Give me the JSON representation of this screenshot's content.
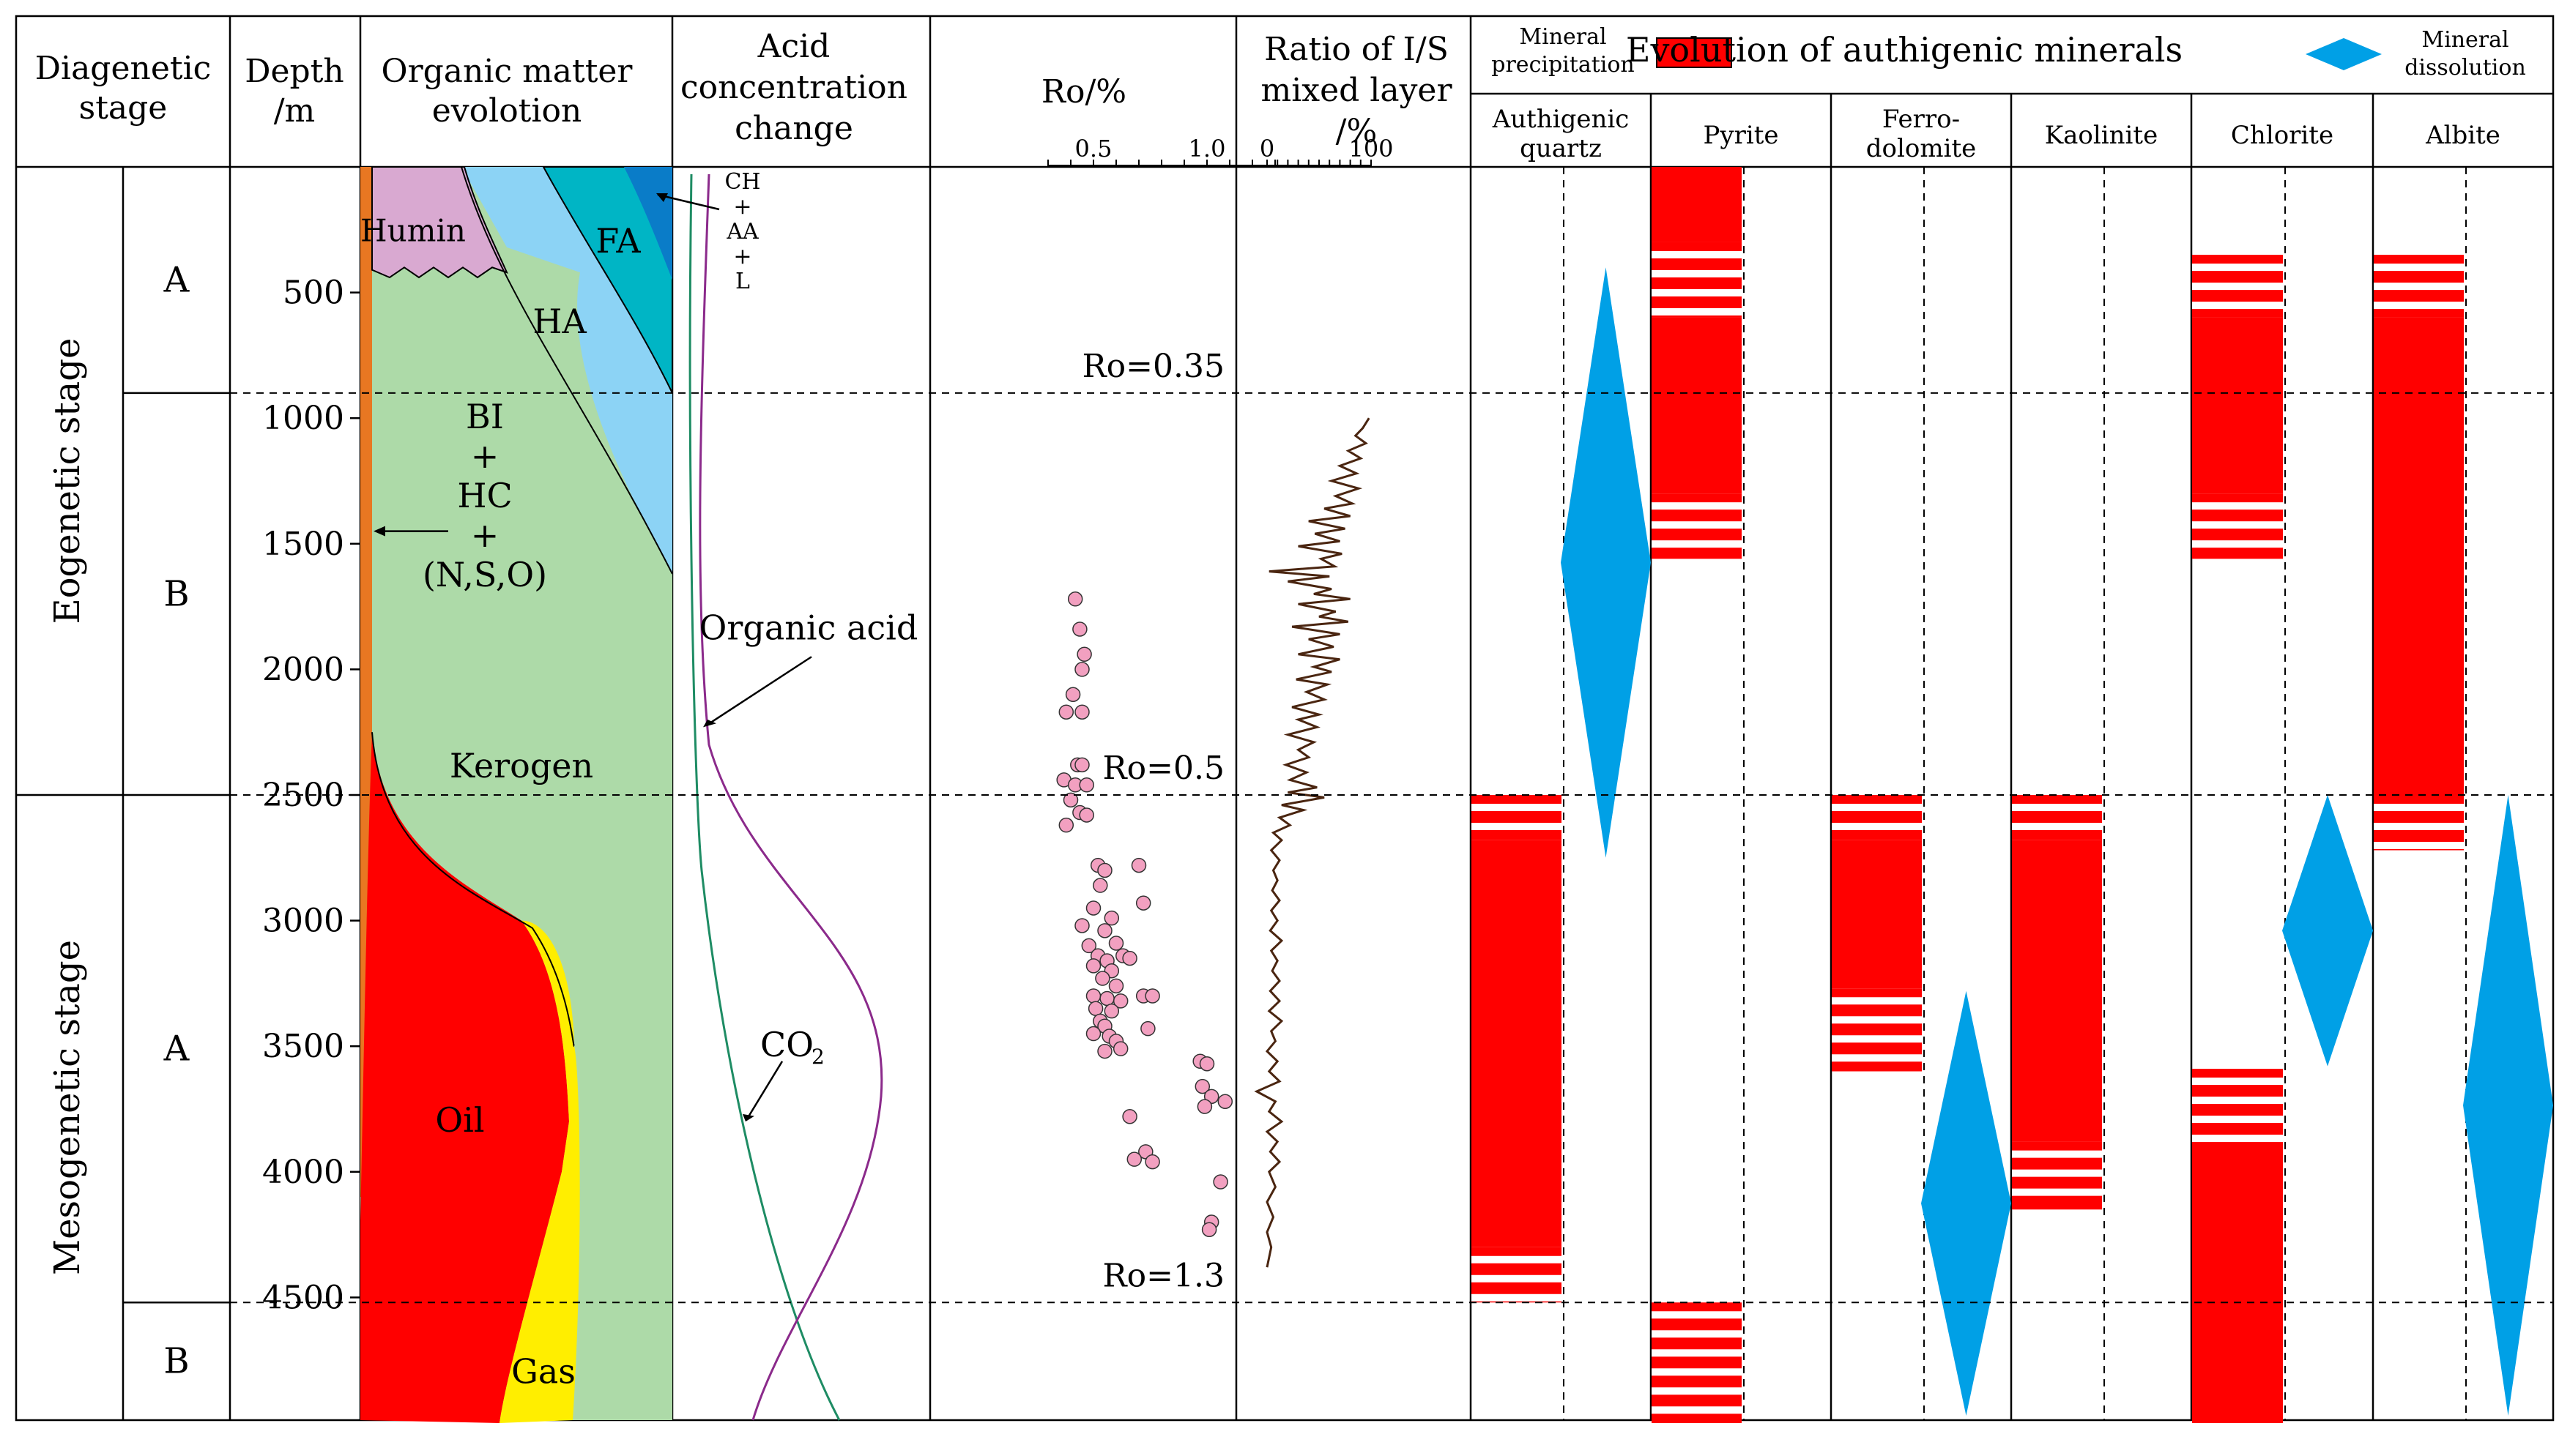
{
  "header": {
    "diagenetic_stage": [
      "Diagenetic",
      "stage"
    ],
    "depth": [
      "Depth",
      "/m"
    ],
    "organic": [
      "Organic  matter",
      "evolotion"
    ],
    "acid": [
      "Acid",
      "concentration",
      "change"
    ],
    "ro": "Ro/%",
    "is": [
      "Ratio of I/S",
      "mixed layer",
      "/%"
    ],
    "mineral_precipitation": [
      "Mineral",
      "precipitation"
    ],
    "evolution_title": "Evolution of authigenic minerals",
    "mineral_dissolution": [
      "Mineral",
      "dissolution"
    ]
  },
  "minerals": [
    {
      "name": [
        "Authigenic",
        "quartz"
      ]
    },
    {
      "name": [
        "Pyrite"
      ]
    },
    {
      "name": [
        "Ferro-",
        "dolomite"
      ]
    },
    {
      "name": [
        "Kaolinite"
      ]
    },
    {
      "name": [
        "Chlorite"
      ]
    },
    {
      "name": [
        "Albite"
      ]
    }
  ],
  "stages": [
    {
      "label": "Eogenetic stage",
      "substages": [
        "A",
        "B"
      ]
    },
    {
      "label": "Mesogenetic stage",
      "substages": [
        "A",
        "B"
      ]
    }
  ],
  "depth_axis": {
    "ticks": [
      500,
      1000,
      1500,
      2000,
      2500,
      3000,
      3500,
      4000,
      4500
    ],
    "min": 0,
    "max": 5000
  },
  "stage_boundaries_m": [
    900,
    2500,
    4520
  ],
  "organic_labels": {
    "humin": "Humin",
    "fa": "FA",
    "ha": "HA",
    "bi": [
      "BI",
      "+",
      "HC",
      "+",
      "(N,S,O)"
    ],
    "kerogen": "Kerogen",
    "oil": "Oil",
    "gas": "Gas"
  },
  "acid_labels": {
    "top": [
      "CH",
      "+",
      "AA",
      "+",
      "L"
    ],
    "organic_acid": "Organic acid",
    "co2": "CO",
    "co2_sub": "2"
  },
  "ro_axis": {
    "ticks": [
      "0.5",
      "1.0"
    ]
  },
  "ro_labels": [
    {
      "text": "Ro=0.35",
      "depth": 900
    },
    {
      "text": "Ro=0.5",
      "depth": 2500
    },
    {
      "text": "Ro=1.3",
      "depth": 4520
    }
  ],
  "ro_points": [
    [
      0.42,
      1720
    ],
    [
      0.44,
      1840
    ],
    [
      0.46,
      1940
    ],
    [
      0.45,
      2000
    ],
    [
      0.41,
      2100
    ],
    [
      0.38,
      2170
    ],
    [
      0.45,
      2170
    ],
    [
      0.43,
      2380
    ],
    [
      0.45,
      2380
    ],
    [
      0.37,
      2440
    ],
    [
      0.42,
      2460
    ],
    [
      0.47,
      2460
    ],
    [
      0.4,
      2520
    ],
    [
      0.44,
      2570
    ],
    [
      0.47,
      2580
    ],
    [
      0.38,
      2620
    ],
    [
      0.52,
      2780
    ],
    [
      0.7,
      2780
    ],
    [
      0.55,
      2800
    ],
    [
      0.53,
      2860
    ],
    [
      0.5,
      2950
    ],
    [
      0.72,
      2930
    ],
    [
      0.58,
      2990
    ],
    [
      0.45,
      3020
    ],
    [
      0.55,
      3040
    ],
    [
      0.48,
      3100
    ],
    [
      0.6,
      3090
    ],
    [
      0.52,
      3140
    ],
    [
      0.56,
      3160
    ],
    [
      0.63,
      3140
    ],
    [
      0.66,
      3150
    ],
    [
      0.5,
      3180
    ],
    [
      0.58,
      3200
    ],
    [
      0.54,
      3230
    ],
    [
      0.6,
      3260
    ],
    [
      0.5,
      3300
    ],
    [
      0.56,
      3310
    ],
    [
      0.62,
      3320
    ],
    [
      0.72,
      3300
    ],
    [
      0.76,
      3300
    ],
    [
      0.51,
      3350
    ],
    [
      0.58,
      3360
    ],
    [
      0.53,
      3400
    ],
    [
      0.55,
      3420
    ],
    [
      0.5,
      3450
    ],
    [
      0.57,
      3460
    ],
    [
      0.74,
      3430
    ],
    [
      0.6,
      3480
    ],
    [
      0.55,
      3520
    ],
    [
      0.62,
      3510
    ],
    [
      0.97,
      3560
    ],
    [
      1.0,
      3570
    ],
    [
      0.98,
      3660
    ],
    [
      1.02,
      3700
    ],
    [
      1.08,
      3720
    ],
    [
      0.99,
      3740
    ],
    [
      0.66,
      3780
    ],
    [
      0.73,
      3920
    ],
    [
      0.76,
      3960
    ],
    [
      0.68,
      3950
    ],
    [
      1.06,
      4040
    ],
    [
      1.02,
      4200
    ],
    [
      1.01,
      4230
    ]
  ],
  "is_axis": {
    "ticks": [
      "0",
      "100"
    ]
  },
  "is_curve": [
    [
      98,
      1000
    ],
    [
      92,
      1040
    ],
    [
      85,
      1070
    ],
    [
      95,
      1100
    ],
    [
      78,
      1130
    ],
    [
      90,
      1160
    ],
    [
      70,
      1190
    ],
    [
      86,
      1220
    ],
    [
      62,
      1250
    ],
    [
      88,
      1280
    ],
    [
      66,
      1310
    ],
    [
      82,
      1340
    ],
    [
      55,
      1360
    ],
    [
      80,
      1390
    ],
    [
      40,
      1410
    ],
    [
      75,
      1440
    ],
    [
      46,
      1460
    ],
    [
      70,
      1490
    ],
    [
      30,
      1510
    ],
    [
      72,
      1540
    ],
    [
      52,
      1560
    ],
    [
      65,
      1590
    ],
    [
      2,
      1610
    ],
    [
      60,
      1630
    ],
    [
      20,
      1650
    ],
    [
      62,
      1680
    ],
    [
      45,
      1700
    ],
    [
      80,
      1720
    ],
    [
      30,
      1740
    ],
    [
      66,
      1770
    ],
    [
      50,
      1790
    ],
    [
      78,
      1810
    ],
    [
      24,
      1830
    ],
    [
      70,
      1860
    ],
    [
      40,
      1880
    ],
    [
      64,
      1910
    ],
    [
      30,
      1940
    ],
    [
      70,
      1960
    ],
    [
      45,
      1990
    ],
    [
      62,
      2010
    ],
    [
      28,
      2040
    ],
    [
      58,
      2060
    ],
    [
      38,
      2090
    ],
    [
      55,
      2120
    ],
    [
      24,
      2150
    ],
    [
      50,
      2180
    ],
    [
      30,
      2200
    ],
    [
      48,
      2230
    ],
    [
      20,
      2260
    ],
    [
      45,
      2290
    ],
    [
      30,
      2320
    ],
    [
      40,
      2350
    ],
    [
      18,
      2380
    ],
    [
      38,
      2410
    ],
    [
      22,
      2440
    ],
    [
      48,
      2470
    ],
    [
      20,
      2490
    ],
    [
      55,
      2510
    ],
    [
      14,
      2540
    ],
    [
      35,
      2560
    ],
    [
      12,
      2590
    ],
    [
      22,
      2620
    ],
    [
      6,
      2650
    ],
    [
      14,
      2680
    ],
    [
      4,
      2720
    ],
    [
      12,
      2760
    ],
    [
      6,
      2800
    ],
    [
      10,
      2840
    ],
    [
      5,
      2880
    ],
    [
      12,
      2920
    ],
    [
      4,
      2960
    ],
    [
      10,
      3000
    ],
    [
      3,
      3040
    ],
    [
      14,
      3080
    ],
    [
      4,
      3120
    ],
    [
      10,
      3160
    ],
    [
      5,
      3200
    ],
    [
      12,
      3240
    ],
    [
      3,
      3280
    ],
    [
      12,
      3320
    ],
    [
      2,
      3360
    ],
    [
      14,
      3400
    ],
    [
      4,
      3440
    ],
    [
      8,
      3480
    ],
    [
      0,
      3520
    ],
    [
      10,
      3560
    ],
    [
      2,
      3600
    ],
    [
      12,
      3640
    ],
    [
      -10,
      3680
    ],
    [
      8,
      3720
    ],
    [
      2,
      3760
    ],
    [
      14,
      3800
    ],
    [
      0,
      3840
    ],
    [
      10,
      3880
    ],
    [
      3,
      3920
    ],
    [
      12,
      3960
    ],
    [
      2,
      4000
    ],
    [
      8,
      4060
    ],
    [
      0,
      4120
    ],
    [
      6,
      4180
    ],
    [
      0,
      4240
    ],
    [
      4,
      4300
    ],
    [
      0,
      4380
    ]
  ],
  "mineral_evolution": [
    {
      "name": "Authigenic quartz",
      "precip_solid": [
        [
          2680,
          4300
        ]
      ],
      "precip_striped": [
        [
          2500,
          2680
        ],
        [
          4300,
          4520
        ]
      ],
      "dissolution": [
        [
          400,
          2750
        ]
      ]
    },
    {
      "name": "Pyrite",
      "precip_solid": [
        [
          0,
          300
        ],
        [
          600,
          1300
        ]
      ],
      "precip_striped": [
        [
          300,
          600
        ],
        [
          1300,
          1560
        ],
        [
          4520,
          5000
        ]
      ],
      "dissolution": []
    },
    {
      "name": "Ferro-dolomite",
      "precip_solid": [
        [
          2680,
          3270
        ]
      ],
      "precip_striped": [
        [
          2500,
          2680
        ],
        [
          3270,
          3600
        ]
      ],
      "dissolution": [
        [
          3280,
          5000
        ]
      ]
    },
    {
      "name": "Kaolinite",
      "precip_solid": [
        [
          2680,
          3880
        ]
      ],
      "precip_striped": [
        [
          2500,
          2680
        ],
        [
          3880,
          4150
        ]
      ],
      "dissolution": []
    },
    {
      "name": "Chlorite",
      "precip_solid": [
        [
          600,
          1300
        ],
        [
          3880,
          5000
        ]
      ],
      "precip_striped": [
        [
          350,
          600
        ],
        [
          1300,
          1560
        ],
        [
          3590,
          3880
        ]
      ],
      "dissolution": [
        [
          2500,
          3580
        ]
      ]
    },
    {
      "name": "Albite",
      "precip_solid": [
        [
          600,
          2500
        ]
      ],
      "precip_striped": [
        [
          350,
          600
        ],
        [
          2500,
          2720
        ]
      ],
      "dissolution": [
        [
          2500,
          5000
        ]
      ]
    }
  ],
  "colors": {
    "red": "#ff0000",
    "blue": "#00a0e6",
    "humin": "#d9a9d1",
    "ha": "#8cd3f5",
    "fa": "#00b5c5",
    "fa_dark": "#0a7cc8",
    "kerogen": "#addaa8",
    "oil": "#ff0000",
    "gas": "#ffee00",
    "orange": "#e87722",
    "green_curve": "#1e8c64",
    "purple_curve": "#8b2a8b",
    "ro_point": "#f2a0c0",
    "is_curve": "#4a2510"
  }
}
